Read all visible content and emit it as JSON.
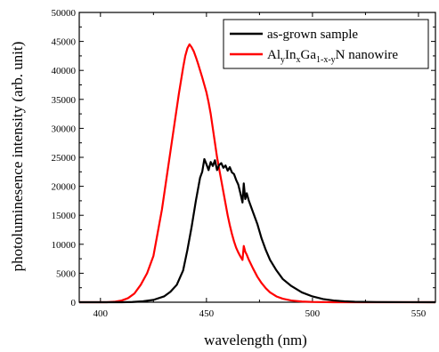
{
  "chart_data": {
    "type": "line",
    "xlabel": "wavelength (nm)",
    "ylabel": "photoluminesence intensity (arb. unit)",
    "xlim": [
      390,
      558
    ],
    "ylim": [
      0,
      50000
    ],
    "x_ticks": [
      "400",
      "450",
      "500",
      "550"
    ],
    "y_ticks": [
      "0",
      "5000",
      "10000",
      "15000",
      "20000",
      "25000",
      "30000",
      "35000",
      "40000",
      "45000",
      "50000"
    ],
    "grid": false,
    "legend_position": "top-right",
    "series": [
      {
        "name": "as-grown sample",
        "color": "#000000",
        "points": [
          [
            390,
            0
          ],
          [
            410,
            0
          ],
          [
            415,
            40
          ],
          [
            420,
            150
          ],
          [
            425,
            400
          ],
          [
            430,
            1000
          ],
          [
            433,
            1800
          ],
          [
            436,
            3000
          ],
          [
            439,
            5500
          ],
          [
            441,
            9000
          ],
          [
            443,
            13000
          ],
          [
            445,
            17500
          ],
          [
            447,
            21500
          ],
          [
            448,
            22500
          ],
          [
            449,
            24700
          ],
          [
            450,
            23800
          ],
          [
            451,
            22800
          ],
          [
            452,
            24200
          ],
          [
            453,
            23500
          ],
          [
            454,
            24500
          ],
          [
            455,
            22800
          ],
          [
            456,
            23700
          ],
          [
            457,
            24000
          ],
          [
            458,
            23200
          ],
          [
            459,
            23600
          ],
          [
            460,
            22700
          ],
          [
            461,
            23300
          ],
          [
            462,
            22400
          ],
          [
            463,
            22100
          ],
          [
            464,
            21100
          ],
          [
            465,
            20300
          ],
          [
            466,
            18800
          ],
          [
            467,
            17200
          ],
          [
            467.6,
            20500
          ],
          [
            468.3,
            17800
          ],
          [
            469,
            18800
          ],
          [
            470,
            17500
          ],
          [
            472,
            15500
          ],
          [
            474,
            13500
          ],
          [
            476,
            11000
          ],
          [
            478,
            9000
          ],
          [
            480,
            7300
          ],
          [
            483,
            5500
          ],
          [
            486,
            4000
          ],
          [
            490,
            2800
          ],
          [
            495,
            1700
          ],
          [
            500,
            1000
          ],
          [
            505,
            550
          ],
          [
            510,
            300
          ],
          [
            515,
            150
          ],
          [
            520,
            80
          ],
          [
            530,
            30
          ],
          [
            545,
            10
          ],
          [
            558,
            0
          ]
        ]
      },
      {
        "name": "Al_yIn_xGa_1-x-yN nanowire",
        "color": "#ff0000",
        "points": [
          [
            390,
            0
          ],
          [
            403,
            0
          ],
          [
            407,
            100
          ],
          [
            410,
            300
          ],
          [
            413,
            700
          ],
          [
            416,
            1500
          ],
          [
            419,
            3000
          ],
          [
            422,
            5000
          ],
          [
            425,
            8000
          ],
          [
            427,
            12000
          ],
          [
            429,
            16000
          ],
          [
            431,
            21000
          ],
          [
            433,
            26000
          ],
          [
            435,
            31000
          ],
          [
            437,
            36000
          ],
          [
            439,
            40500
          ],
          [
            440,
            42500
          ],
          [
            441,
            43800
          ],
          [
            442,
            44500
          ],
          [
            443,
            44000
          ],
          [
            444,
            43300
          ],
          [
            445,
            42300
          ],
          [
            446,
            41200
          ],
          [
            447,
            40000
          ],
          [
            448,
            38800
          ],
          [
            449,
            37500
          ],
          [
            450,
            36200
          ],
          [
            451,
            34500
          ],
          [
            452,
            32500
          ],
          [
            453,
            30000
          ],
          [
            454,
            27500
          ],
          [
            455,
            25000
          ],
          [
            456,
            23000
          ],
          [
            457,
            21000
          ],
          [
            458,
            19000
          ],
          [
            459,
            17000
          ],
          [
            460,
            15000
          ],
          [
            461,
            13300
          ],
          [
            462,
            11800
          ],
          [
            463,
            10500
          ],
          [
            464,
            9400
          ],
          [
            465,
            8600
          ],
          [
            466,
            7900
          ],
          [
            467,
            7300
          ],
          [
            467.6,
            9700
          ],
          [
            468.3,
            8700
          ],
          [
            469,
            8200
          ],
          [
            470,
            7300
          ],
          [
            472,
            5800
          ],
          [
            474,
            4400
          ],
          [
            476,
            3300
          ],
          [
            478,
            2400
          ],
          [
            480,
            1700
          ],
          [
            483,
            1000
          ],
          [
            486,
            600
          ],
          [
            490,
            300
          ],
          [
            495,
            120
          ],
          [
            500,
            50
          ],
          [
            510,
            0
          ],
          [
            558,
            0
          ]
        ]
      }
    ]
  },
  "legend": {
    "entries": [
      {
        "label": "as-grown sample"
      },
      {
        "parts": [
          "Al",
          "y",
          "In",
          "x",
          "Ga",
          "1-x-y",
          "N nanowire"
        ]
      }
    ]
  }
}
